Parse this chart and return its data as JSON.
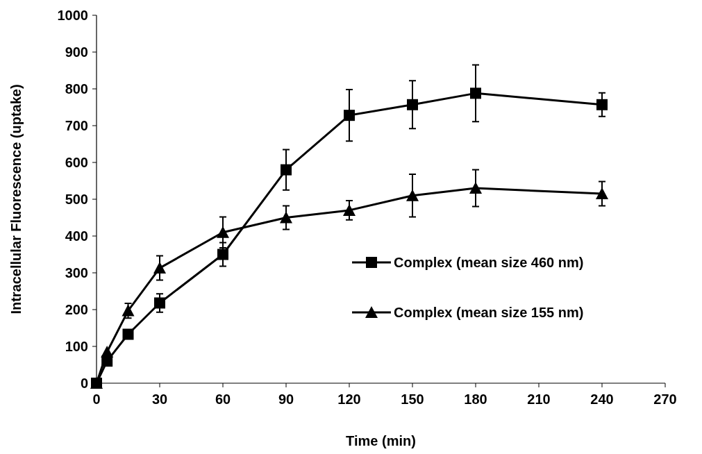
{
  "chart_data": {
    "type": "line",
    "xlabel": "Time (min)",
    "ylabel": "Intracellular Fluorescence (uptake)",
    "xlim": [
      0,
      270
    ],
    "xticks": [
      0,
      30,
      60,
      90,
      120,
      150,
      180,
      210,
      240,
      270
    ],
    "ylim": [
      0,
      1000
    ],
    "yticks": [
      0,
      100,
      200,
      300,
      400,
      500,
      600,
      700,
      800,
      900,
      1000
    ],
    "grid": false,
    "legend": "right",
    "line_style": "solid",
    "series": [
      {
        "name": "Complex (mean size 460 nm)",
        "color": "#000000",
        "marker": "square",
        "x": [
          0,
          5,
          15,
          30,
          60,
          90,
          120,
          150,
          180,
          240
        ],
        "values": [
          0,
          60,
          133,
          218,
          350,
          580,
          728,
          757,
          788,
          757
        ],
        "errors": [
          null,
          null,
          null,
          25,
          32,
          55,
          70,
          65,
          77,
          32
        ]
      },
      {
        "name": "Complex (mean size 155 nm)",
        "color": "#000000",
        "marker": "triangle",
        "x": [
          0,
          5,
          15,
          30,
          60,
          90,
          120,
          150,
          180,
          240
        ],
        "values": [
          0,
          85,
          197,
          313,
          410,
          450,
          470,
          510,
          530,
          515
        ],
        "errors": [
          null,
          null,
          20,
          33,
          42,
          32,
          26,
          58,
          50,
          33
        ]
      }
    ]
  }
}
